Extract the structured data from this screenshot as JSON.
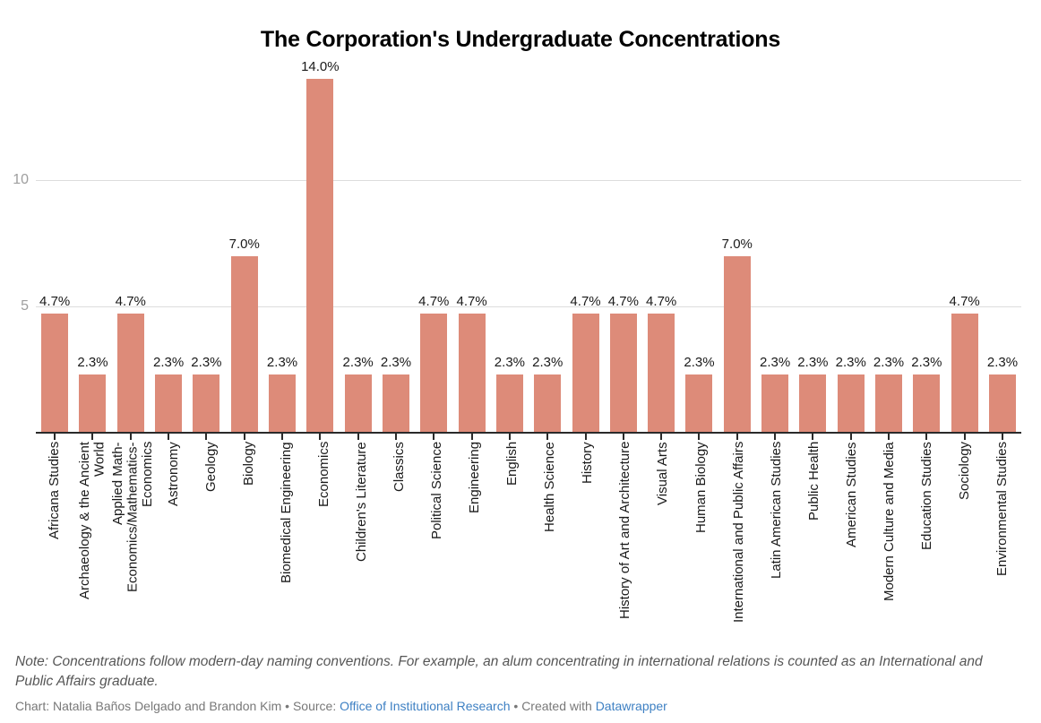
{
  "title": "The Corporation's Undergraduate Concentrations",
  "colors": {
    "bar": "#dd8b79",
    "gridline": "#dddddd",
    "axis_line": "#2a2a2a",
    "ytick_label": "#9e9e9e",
    "value_label": "#1a1a1a",
    "note_text": "#565656",
    "attribution_text": "#787878",
    "link": "#3e80c3"
  },
  "chart_data": {
    "type": "bar",
    "title": "The Corporation's Undergraduate Concentrations",
    "xlabel": "",
    "ylabel": "",
    "ylim": [
      0,
      15
    ],
    "yticks": [
      5,
      10
    ],
    "grid": "horizontal",
    "legend": "none",
    "categories": [
      "Africana Studies",
      "Archaeology & the Ancient World",
      "Applied Math-Economics/Mathematics-Economics",
      "Astronomy",
      "Geology",
      "Biology",
      "Biomedical Engineering",
      "Economics",
      "Children's Literature",
      "Classics",
      "Political Science",
      "Engineering",
      "English",
      "Health Science",
      "History",
      "History of Art and Architecture",
      "Visual Arts",
      "Human Biology",
      "International and Public Affairs",
      "Latin American Studies",
      "Public Health",
      "American Studies",
      "Modern Culture and Media",
      "Education Studies",
      "Sociology",
      "Environmental Studies"
    ],
    "values": [
      4.7,
      2.3,
      4.7,
      2.3,
      2.3,
      7.0,
      2.3,
      14.0,
      2.3,
      2.3,
      4.7,
      4.7,
      2.3,
      2.3,
      4.7,
      4.7,
      4.7,
      2.3,
      7.0,
      2.3,
      2.3,
      2.3,
      2.3,
      2.3,
      4.7,
      2.3
    ],
    "value_labels": [
      "4.7%",
      "2.3%",
      "4.7%",
      "2.3%",
      "2.3%",
      "7.0%",
      "2.3%",
      "14.0%",
      "2.3%",
      "2.3%",
      "4.7%",
      "4.7%",
      "2.3%",
      "2.3%",
      "4.7%",
      "4.7%",
      "4.7%",
      "2.3%",
      "7.0%",
      "2.3%",
      "2.3%",
      "2.3%",
      "2.3%",
      "2.3%",
      "4.7%",
      "2.3%"
    ]
  },
  "footer": {
    "note": "Note: Concentrations follow modern-day naming conventions. For example, an alum concentrating in international relations is counted as an International and Public Affairs graduate.",
    "chart_credit": "Chart: Natalia Baños Delgado and Brandon Kim • Source: ",
    "source_link": "Office of Institutional Research",
    "created_with": " • Created with ",
    "datawrapper_link": "Datawrapper"
  }
}
